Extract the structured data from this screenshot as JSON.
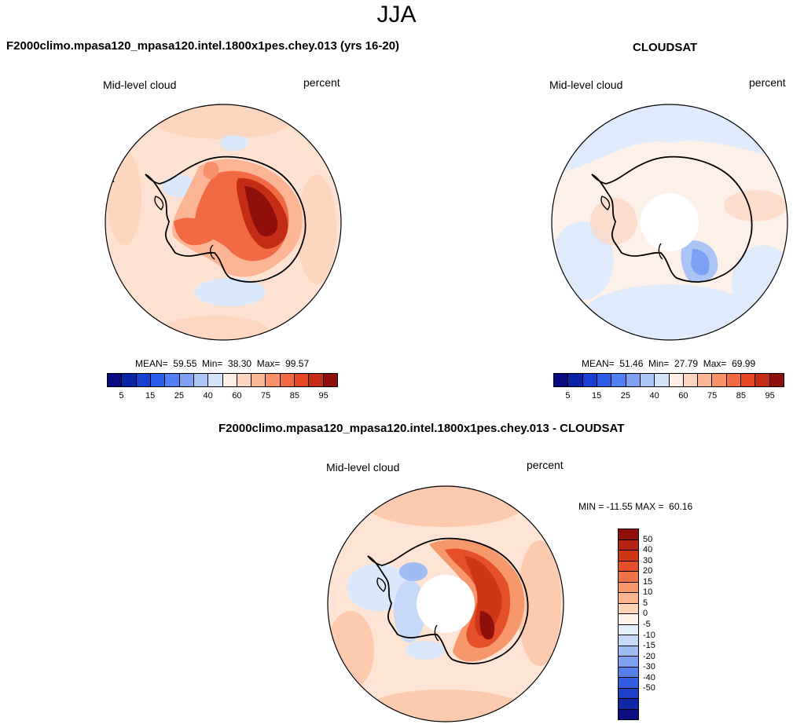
{
  "season": "JJA",
  "panels": {
    "model": {
      "title": "F2000climo.mpasa120_mpasa120.intel.1800x1pes.chey.013 (yrs 16-20)",
      "var_label": "Mid-level cloud",
      "units": "percent",
      "stats": "MEAN=  59.55  Min=  38.30  Max=  99.57",
      "mean": 59.55,
      "min": 38.3,
      "max": 99.57
    },
    "obs": {
      "title": "CLOUDSAT",
      "var_label": "Mid-level cloud",
      "units": "percent",
      "stats": "MEAN=  51.46  Min=  27.79  Max=  69.99",
      "mean": 51.46,
      "min": 27.79,
      "max": 69.99
    },
    "diff": {
      "title": "F2000climo.mpasa120_mpasa120.intel.1800x1pes.chey.013 - CLOUDSAT",
      "var_label": "Mid-level cloud",
      "units": "percent",
      "stats": "MIN = -11.55 MAX =  60.16",
      "min": -11.55,
      "max": 60.16
    }
  },
  "colorbar_main": {
    "colors": [
      "#0a0a80",
      "#0b23a6",
      "#1740d0",
      "#2b5ee8",
      "#4f7ff0",
      "#7ea0f3",
      "#a9c4f5",
      "#d3e3f9",
      "#fdeee6",
      "#fdd4be",
      "#fbb595",
      "#f8906a",
      "#f26a44",
      "#e54724",
      "#c52c15",
      "#8f0f0a"
    ],
    "ticks": [
      "5",
      "15",
      "25",
      "40",
      "60",
      "75",
      "85",
      "95"
    ]
  },
  "colorbar_diff": {
    "colors": [
      "#8f0f0a",
      "#b42412",
      "#cf3517",
      "#e5502a",
      "#f07449",
      "#f6976c",
      "#fab590",
      "#fdd2b5",
      "#fef2ea",
      "#e3eefb",
      "#c6d9f8",
      "#9fbcf3",
      "#7c9ff0",
      "#5580ea",
      "#325fe1",
      "#1d3fc8",
      "#0f27a5",
      "#0a0e80"
    ],
    "ticks": [
      "50",
      "40",
      "30",
      "20",
      "15",
      "10",
      "5",
      "0",
      "-5",
      "-10",
      "-15",
      "-20",
      "-30",
      "-40",
      "-50"
    ]
  },
  "map_colors": {
    "ocean_model": "#fde2d2",
    "ocean_obs": "#fdf0e8",
    "ocean_diff": "#fde4d4",
    "missing": "#ffffff",
    "coast": "#000000"
  }
}
